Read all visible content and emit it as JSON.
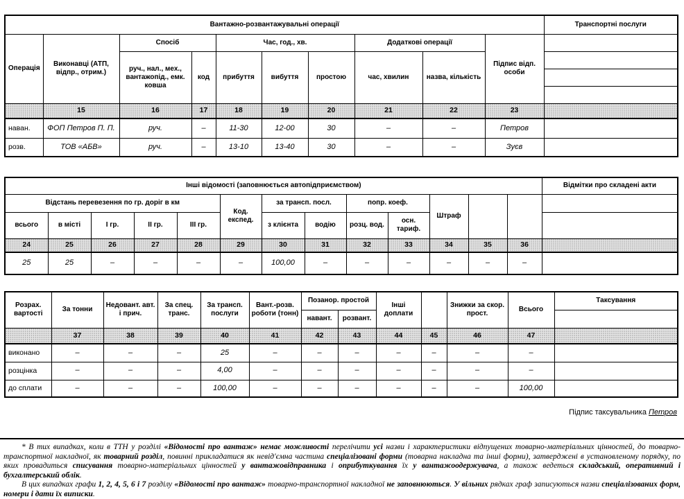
{
  "t1": {
    "title": "Вантажно-розвантажувальні операції",
    "right_title": "Транспортні послуги",
    "col_operation": "Операція",
    "col_executors": "Виконавці (АТП, відпр., отрим.)",
    "grp_method": "Спосіб",
    "grp_time": "Час, год., хв.",
    "grp_additional": "Додаткові операції",
    "col_method_detail": "руч., нал., мех., вантажопід., емк. ковша",
    "col_code": "код",
    "col_arrival": "прибуття",
    "col_departure": "вибуття",
    "col_idle": "простою",
    "col_add_time": "час, хвилин",
    "col_add_name": "назва, кількість",
    "col_signature": "Підпис відп. особи",
    "nums": [
      "15",
      "16",
      "17",
      "18",
      "19",
      "20",
      "21",
      "22",
      "23"
    ],
    "rows": [
      {
        "op": "наван.",
        "executor": "ФОП Петров П. П.",
        "method": "руч.",
        "code": "–",
        "arrival": "11-30",
        "departure": "12-00",
        "idle": "30",
        "add_time": "–",
        "add_name": "–",
        "sign": "Петров"
      },
      {
        "op": "розв.",
        "executor": "ТОВ «АБВ»",
        "method": "руч.",
        "code": "–",
        "arrival": "13-10",
        "departure": "13-40",
        "idle": "30",
        "add_time": "–",
        "add_name": "–",
        "sign": "Зуєв"
      }
    ]
  },
  "t2": {
    "title": "Інші відомості (заповнюється автопідприємством)",
    "right_title": "Відмітки про складені акти",
    "grp_distance": "Відстань перевезення по гр. доріг в км",
    "col_total": "всього",
    "col_city": "в місті",
    "col_g1": "І гр.",
    "col_g2": "ІІ гр.",
    "col_g3": "ІІІ гр.",
    "col_code_exp": "Код. експед.",
    "grp_transp": "за трансп. посл.",
    "col_from_client": "з клієнта",
    "col_driver": "водію",
    "grp_coef": "попр. коеф.",
    "col_rate_driver": "розц. вод.",
    "col_base_tariff": "осн. тариф.",
    "col_fine": "Штраф",
    "nums": [
      "24",
      "25",
      "26",
      "27",
      "28",
      "29",
      "30",
      "31",
      "32",
      "33",
      "34",
      "35",
      "36"
    ],
    "row": [
      "25",
      "25",
      "–",
      "–",
      "–",
      "–",
      "100,00",
      "–",
      "–",
      "–",
      "–",
      "–",
      "–"
    ]
  },
  "t3": {
    "col_calc": "Розрах. вартості",
    "col_per_ton": "За тонни",
    "col_underload": "Недовант. авт. і прич.",
    "col_special": "За спец. транс.",
    "col_transp": "За трансп. послуги",
    "col_loading_works": "Вант.-розв. роботи (тонн)",
    "grp_overtime": "Позанор. простой",
    "col_load": "навант.",
    "col_unload": "розвант.",
    "col_other": "Інші доплати",
    "col_discount": "Знижки за скор. прост.",
    "col_total": "Всього",
    "right_title": "Таксування",
    "nums": [
      "37",
      "38",
      "39",
      "40",
      "41",
      "42",
      "43",
      "44",
      "45",
      "46",
      "47"
    ],
    "rows": [
      {
        "label": "виконано",
        "v0": "–",
        "v1": "–",
        "v2": "–",
        "v3": "25",
        "v4": "–",
        "v5": "–",
        "v6": "–",
        "v7": "–",
        "v8": "–",
        "v9": "–",
        "v10": "–"
      },
      {
        "label": "розцінка",
        "v0": "–",
        "v1": "–",
        "v2": "–",
        "v3": "4,00",
        "v4": "–",
        "v5": "–",
        "v6": "–",
        "v7": "–",
        "v8": "–",
        "v9": "–",
        "v10": "–"
      },
      {
        "label": "до сплати",
        "v0": "–",
        "v1": "–",
        "v2": "–",
        "v3": "100,00",
        "v4": "–",
        "v5": "–",
        "v6": "–",
        "v7": "–",
        "v8": "–",
        "v9": "–",
        "v10": "100,00"
      }
    ]
  },
  "signature": {
    "label": "Підпис таксувальника",
    "name": "Петров"
  },
  "footnote": {
    "paragraphs": [
      [
        {
          "t": "* В тих випадках, коли в ТТН у розділі ",
          "b": false
        },
        {
          "t": "«Відомості про вантаж» немає можливості ",
          "b": true
        },
        {
          "t": "перелічити ",
          "b": false
        },
        {
          "t": "усі ",
          "b": true
        },
        {
          "t": "назви і характеристики відпущених товарно-матеріальних цінностей, до товарно-транспортної накладної, як ",
          "b": false
        },
        {
          "t": "товарний розділ",
          "b": true
        },
        {
          "t": ", повинні прикладатися як невід'ємна частина ",
          "b": false
        },
        {
          "t": "спеціалізовані форми",
          "b": true
        },
        {
          "t": " (товарна накладна та інші форми), затверджені в установленому порядку, по яких провадиться ",
          "b": false
        },
        {
          "t": "списування",
          "b": true
        },
        {
          "t": " товарно-матеріальних цінностей ",
          "b": false
        },
        {
          "t": "у вантажовідправника",
          "b": true
        },
        {
          "t": " і ",
          "b": false
        },
        {
          "t": "оприбуткування",
          "b": true
        },
        {
          "t": " їх ",
          "b": false
        },
        {
          "t": "у вантажоодержувача",
          "b": true
        },
        {
          "t": ", а також ведеться ",
          "b": false
        },
        {
          "t": "складський, оперативний і бухгалтерський облік",
          "b": true
        },
        {
          "t": ".",
          "b": false
        }
      ],
      [
        {
          "t": "В цих випадках графи ",
          "b": false
        },
        {
          "t": "1, 2, 4, 5, 6 і 7",
          "b": true
        },
        {
          "t": " розділу ",
          "b": false
        },
        {
          "t": "«Відомості про вантаж»",
          "b": true
        },
        {
          "t": " товарно-транспортної накладної ",
          "b": false
        },
        {
          "t": "не заповнюються",
          "b": true
        },
        {
          "t": ". ",
          "b": false
        },
        {
          "t": "У вільних",
          "b": true
        },
        {
          "t": " рядках граф записуються назви ",
          "b": false
        },
        {
          "t": "спеціалізованих форм, номери і дати їх виписки",
          "b": true
        },
        {
          "t": ".",
          "b": false
        }
      ]
    ]
  }
}
